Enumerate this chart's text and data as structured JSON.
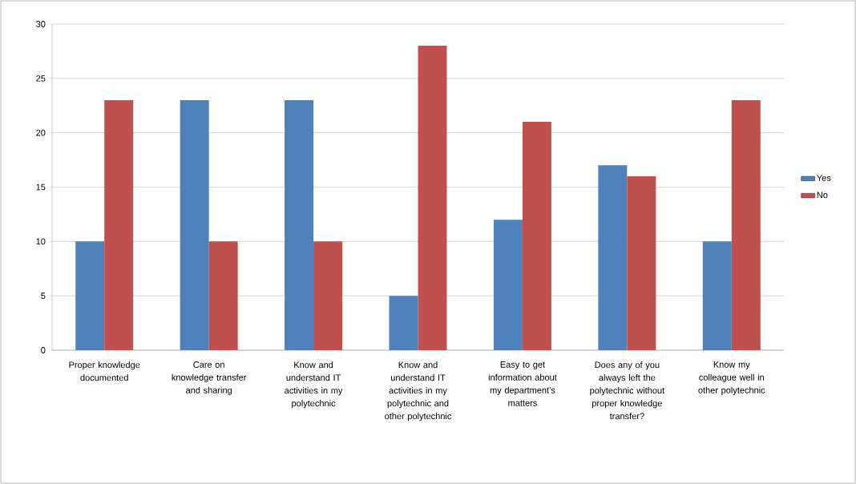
{
  "chart_data": {
    "type": "bar",
    "categories": [
      "Proper knowledge documented",
      "Care on knowledge transfer and sharing",
      "Know and understand IT activities in my polytechnic",
      "Know and understand IT activities in my polytechnic and other polytechnic",
      "Easy to get information about my department’s matters",
      "Does any of you always left the polytechnic without proper knowledge transfer?",
      "Know my colleague well in other polytechnic"
    ],
    "series": [
      {
        "name": "Yes",
        "color": "#4f81bd",
        "values": [
          10,
          23,
          23,
          5,
          12,
          17,
          10
        ]
      },
      {
        "name": "No",
        "color": "#c0504d",
        "values": [
          23,
          10,
          10,
          28,
          21,
          16,
          23
        ]
      }
    ],
    "ylim": [
      0,
      30
    ],
    "yticks": [
      0,
      5,
      10,
      15,
      20,
      25,
      30
    ],
    "grid": "y",
    "legend": "right"
  }
}
